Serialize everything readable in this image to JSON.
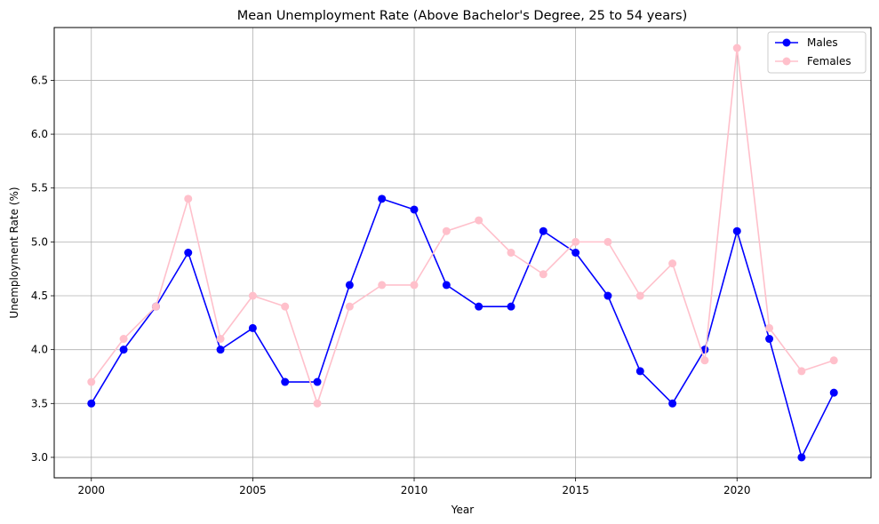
{
  "chart_data": {
    "type": "line",
    "title": "Mean Unemployment Rate (Above Bachelor's Degree, 25 to 54 years)",
    "xlabel": "Year",
    "ylabel": "Unemployment Rate (%)",
    "x": [
      2000,
      2001,
      2002,
      2003,
      2004,
      2005,
      2006,
      2007,
      2008,
      2009,
      2010,
      2011,
      2012,
      2013,
      2014,
      2015,
      2016,
      2017,
      2018,
      2019,
      2020,
      2021,
      2022,
      2023
    ],
    "series": [
      {
        "name": "Males",
        "color": "#0000ff",
        "values": [
          3.5,
          4.0,
          4.4,
          4.9,
          4.0,
          4.2,
          3.7,
          3.7,
          4.6,
          5.4,
          5.3,
          4.6,
          4.4,
          4.4,
          5.1,
          4.9,
          4.5,
          3.8,
          3.5,
          4.0,
          5.1,
          4.1,
          3.0,
          3.6
        ]
      },
      {
        "name": "Females",
        "color": "#ffc0cb",
        "values": [
          3.7,
          4.1,
          4.4,
          5.4,
          4.1,
          4.5,
          4.4,
          3.5,
          4.4,
          4.6,
          4.6,
          5.1,
          5.2,
          4.9,
          4.7,
          5.0,
          5.0,
          4.5,
          4.8,
          3.9,
          6.8,
          4.2,
          3.8,
          3.9
        ]
      }
    ],
    "xlim": [
      1998.85,
      2024.15
    ],
    "ylim": [
      2.81,
      6.99
    ],
    "xticks": [
      2000,
      2005,
      2010,
      2015,
      2020
    ],
    "xtick_labels": [
      "2000",
      "2005",
      "2010",
      "2015",
      "2020"
    ],
    "yticks": [
      3.0,
      3.5,
      4.0,
      4.5,
      5.0,
      5.5,
      6.0,
      6.5
    ],
    "ytick_labels": [
      "3.0",
      "3.5",
      "4.0",
      "4.5",
      "5.0",
      "5.5",
      "6.0",
      "6.5"
    ],
    "grid": true,
    "legend_position": "top-right"
  }
}
